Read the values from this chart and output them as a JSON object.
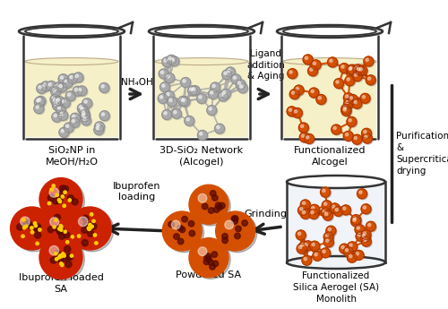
{
  "background_color": "#ffffff",
  "beaker_fill": "#f5f0c8",
  "particle_gray": "#aaaaaa",
  "particle_gray_edge": "#888888",
  "particle_orange": "#d45000",
  "particle_orange_edge": "#a03000",
  "arrow_color": "#222222",
  "text_color": "#000000",
  "labels": {
    "beaker1": "SiO₂NP in\nMeOH/H₂O",
    "beaker2": "3D-SiO₂ Network\n(Alcogel)",
    "beaker3": "Functionalized\nAlcogel",
    "cylinder": "Functionalized\nSilica Aerogel (SA)\nMonolith",
    "powdered": "Powdered SA",
    "loaded": "Ibuprofen loaded\nSA",
    "arrow1": "NH₄OH",
    "arrow2": "Ligand\naddition\n& Aging",
    "arrow3": "Purification\n&\nSupercritical\ndrying",
    "arrow4": "Grinding",
    "arrow5": "Ibuprofen\nloading"
  }
}
